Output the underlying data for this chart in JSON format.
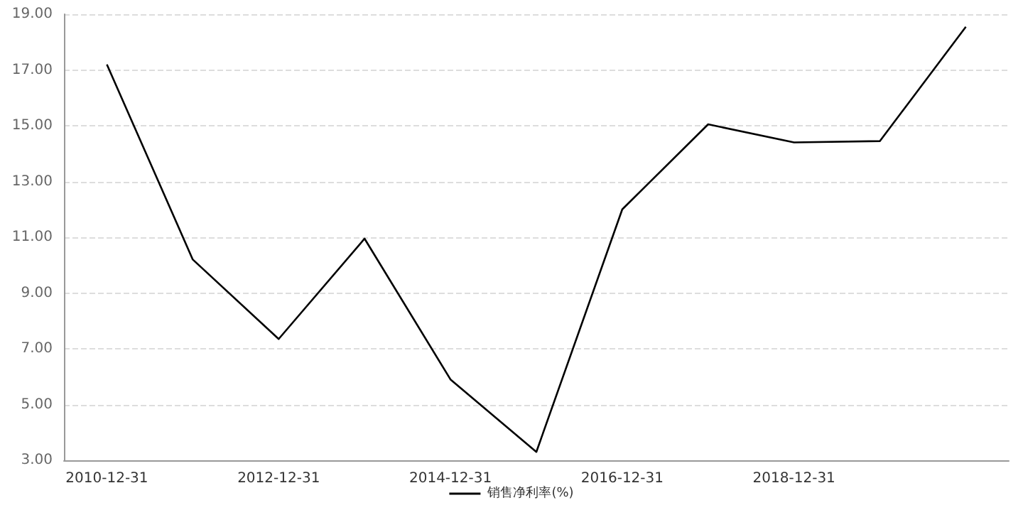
{
  "chart_data": {
    "type": "line",
    "categories": [
      "2010-12-31",
      null,
      "2012-12-31",
      null,
      "2014-12-31",
      null,
      "2016-12-31",
      null,
      "2018-12-31",
      null,
      null
    ],
    "series": [
      {
        "name": "销售净利率(%)",
        "color": "#000000",
        "values": [
          17.2,
          10.2,
          7.35,
          10.95,
          5.9,
          3.3,
          12.0,
          15.05,
          14.4,
          14.45,
          18.55
        ]
      }
    ],
    "ylim": [
      3,
      19
    ],
    "yticks": [
      {
        "value": 3,
        "label": "3.00"
      },
      {
        "value": 5,
        "label": "5.00"
      },
      {
        "value": 7,
        "label": "7.00"
      },
      {
        "value": 9,
        "label": "9.00"
      },
      {
        "value": 11,
        "label": "11.00"
      },
      {
        "value": 13,
        "label": "13.00"
      },
      {
        "value": 15,
        "label": "15.00"
      },
      {
        "value": 17,
        "label": "17.00"
      },
      {
        "value": 19,
        "label": "19.00"
      }
    ],
    "grid": "y",
    "legend": "bottom",
    "marker": "none",
    "line_style": "solid"
  }
}
